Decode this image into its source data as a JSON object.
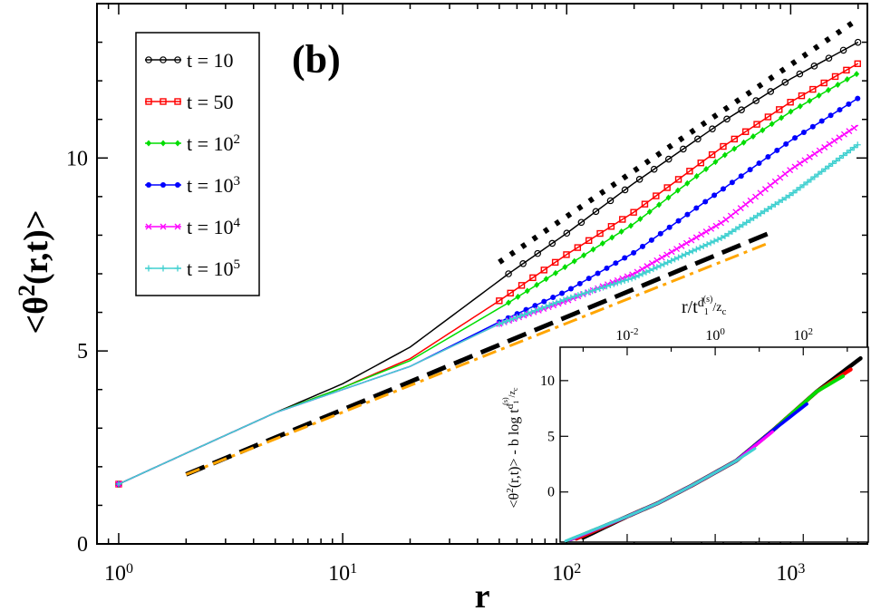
{
  "chart_data": [
    {
      "type": "line",
      "panel_label": "(b)",
      "xscale": "log",
      "xlim": [
        0.8,
        2200
      ],
      "ylim": [
        0,
        14
      ],
      "xlabel": "r",
      "ylabel": "<θ²(r,t)>",
      "x_ticks": [
        {
          "value": 1,
          "base": "10",
          "exp": "0"
        },
        {
          "value": 10,
          "base": "10",
          "exp": "1"
        },
        {
          "value": 100,
          "base": "10",
          "exp": "2"
        },
        {
          "value": 1000,
          "base": "10",
          "exp": "3"
        }
      ],
      "y_ticks": [
        {
          "value": 0,
          "label": "0"
        },
        {
          "value": 5,
          "label": "5"
        },
        {
          "value": 10,
          "label": "10"
        }
      ],
      "series": [
        {
          "name": "t = 10",
          "prefix": "t = ",
          "base": "10",
          "exp": "",
          "color": "#000000",
          "marker": "circle-open",
          "x": [
            1,
            2,
            5,
            10,
            20,
            55,
            100,
            200,
            500,
            1000,
            2000
          ],
          "y": [
            1.55,
            2.35,
            3.4,
            4.15,
            5.1,
            7.0,
            8.05,
            9.35,
            10.95,
            12.05,
            13.0
          ]
        },
        {
          "name": "t = 50",
          "prefix": "t = ",
          "base": "50",
          "exp": "",
          "color": "#ff0000",
          "marker": "square-open",
          "x": [
            1,
            2,
            5,
            10,
            20,
            50,
            100,
            200,
            500,
            1000,
            2000
          ],
          "y": [
            1.55,
            2.35,
            3.4,
            4.05,
            4.8,
            6.3,
            7.5,
            8.6,
            10.3,
            11.45,
            12.45
          ]
        },
        {
          "name": "t = 10^2",
          "prefix": "t = ",
          "base": "10",
          "exp": "2",
          "color": "#00dd00",
          "marker": "diamond",
          "x": [
            1,
            2,
            5,
            10,
            20,
            55,
            100,
            200,
            500,
            1000,
            2000
          ],
          "y": [
            1.55,
            2.35,
            3.4,
            4.05,
            4.75,
            6.25,
            7.2,
            8.3,
            10.05,
            11.2,
            12.2
          ]
        },
        {
          "name": "t = 10^3",
          "prefix": "t = ",
          "base": "10",
          "exp": "3",
          "color": "#0000ff",
          "marker": "dot",
          "x": [
            1,
            2,
            5,
            10,
            20,
            50,
            100,
            200,
            500,
            1000,
            2000
          ],
          "y": [
            1.55,
            2.35,
            3.4,
            4.0,
            4.6,
            5.75,
            6.55,
            7.55,
            9.2,
            10.45,
            11.55
          ]
        },
        {
          "name": "t = 10^4",
          "prefix": "t = ",
          "base": "10",
          "exp": "4",
          "color": "#ff00ff",
          "marker": "x",
          "x": [
            1,
            2,
            5,
            10,
            20,
            50,
            100,
            200,
            500,
            1000,
            2000
          ],
          "y": [
            1.55,
            2.35,
            3.4,
            4.0,
            4.6,
            5.7,
            6.3,
            7.0,
            8.35,
            9.7,
            10.85
          ]
        },
        {
          "name": "t = 10^5",
          "prefix": "t = ",
          "base": "10",
          "exp": "5",
          "color": "#40d0d0",
          "marker": "plus",
          "x": [
            1,
            2,
            5,
            10,
            20,
            50,
            100,
            200,
            500,
            1000,
            2000
          ],
          "y": [
            1.55,
            2.35,
            3.4,
            4.0,
            4.6,
            5.7,
            6.35,
            6.9,
            7.95,
            9.05,
            10.35
          ]
        }
      ],
      "reference_lines": [
        {
          "name": "dotted slope",
          "style": "dotted",
          "color": "#000000",
          "x": [
            50,
            2000
          ],
          "y": [
            7.3,
            13.6
          ]
        },
        {
          "name": "dashed slope",
          "style": "dashed",
          "color": "#000000",
          "x": [
            2,
            800
          ],
          "y": [
            1.8,
            8.05
          ]
        },
        {
          "name": "dash-dot slope",
          "style": "dashdot",
          "color": "#ffa500",
          "x": [
            2,
            800
          ],
          "y": [
            1.8,
            7.8
          ]
        }
      ],
      "legend_position": "top-left"
    },
    {
      "type": "line",
      "role": "inset",
      "xscale": "log",
      "xlim": [
        0.0003,
        3000
      ],
      "ylim": [
        -4.5,
        13
      ],
      "xlabel": "r/t^{d1(s)/zc}",
      "xlabel_parts": {
        "main": "r/t",
        "sup": "d",
        "sub": "1",
        "supsup": "(s)",
        "tail": "/z",
        "tailsub": "c"
      },
      "ylabel": "<θ²(r,t)> - b log t^{d1(s)/zc}",
      "ylabel_parts": {
        "main": "<θ",
        "sq": "2",
        "mid": "(r,t)> - b log t",
        "sup": "d",
        "sub": "1",
        "supsup": "(s)",
        "tail": "/z",
        "tailsub": "c"
      },
      "x_ticks": [
        {
          "value": 0.01,
          "base": "10",
          "exp": "-2"
        },
        {
          "value": 1,
          "base": "10",
          "exp": "0"
        },
        {
          "value": 100,
          "base": "10",
          "exp": "2"
        }
      ],
      "y_ticks": [
        {
          "value": 0,
          "label": "0"
        },
        {
          "value": 5,
          "label": "5"
        },
        {
          "value": 10,
          "label": "10"
        }
      ],
      "series": [
        {
          "name": "t = 10",
          "color": "#000000",
          "x": [
            0.001,
            0.01,
            0.05,
            0.3,
            3,
            20,
            200,
            2000
          ],
          "y": [
            -4.1,
            -2.2,
            -1.0,
            0.6,
            2.8,
            5.5,
            9.0,
            12.0
          ]
        },
        {
          "name": "t = 50",
          "color": "#ff0000",
          "x": [
            0.0007,
            0.01,
            0.05,
            0.3,
            3,
            20,
            200,
            1200
          ],
          "y": [
            -4.2,
            -2.2,
            -1.0,
            0.6,
            2.8,
            5.5,
            9.0,
            11.0
          ]
        },
        {
          "name": "t = 10^2",
          "color": "#00dd00",
          "x": [
            0.0005,
            0.01,
            0.05,
            0.3,
            3,
            20,
            200,
            800
          ],
          "y": [
            -4.3,
            -2.2,
            -1.0,
            0.6,
            2.8,
            5.5,
            9.0,
            10.4
          ]
        },
        {
          "name": "t = 10^3",
          "color": "#0000ff",
          "x": [
            0.0005,
            0.01,
            0.05,
            0.3,
            3,
            20,
            120
          ],
          "y": [
            -4.3,
            -2.2,
            -1.0,
            0.6,
            2.8,
            5.5,
            7.9
          ]
        },
        {
          "name": "t = 10^4",
          "color": "#ff00ff",
          "x": [
            0.0005,
            0.01,
            0.05,
            0.3,
            3,
            20
          ],
          "y": [
            -4.3,
            -2.2,
            -1.0,
            0.6,
            2.8,
            5.4
          ]
        },
        {
          "name": "t = 10^5",
          "color": "#40d0d0",
          "x": [
            0.0004,
            0.01,
            0.05,
            0.3,
            3,
            8
          ],
          "y": [
            -4.4,
            -2.2,
            -1.0,
            0.6,
            2.8,
            3.9
          ]
        }
      ]
    }
  ]
}
